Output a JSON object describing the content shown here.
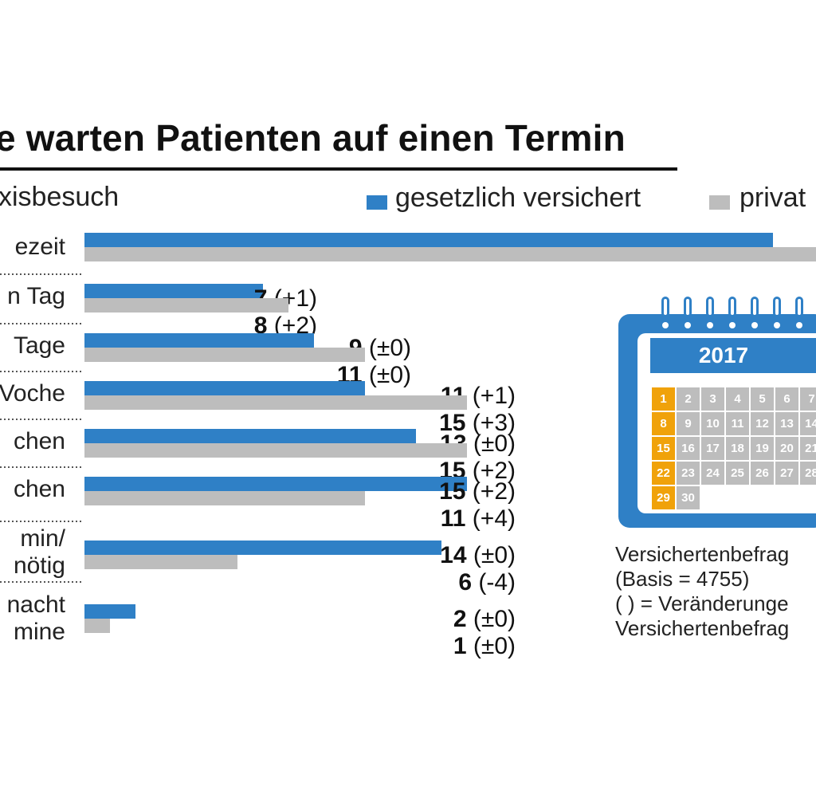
{
  "title": "e warten Patienten auf einen Termin",
  "subtitle": "xisbesuch",
  "legend": [
    {
      "label": "gesetzlich versichert",
      "color": "#2f80c6"
    },
    {
      "label": "privat",
      "color": "#bdbdbd"
    }
  ],
  "chart_data": {
    "type": "bar",
    "orientation": "horizontal",
    "categories": [
      "ezeit",
      "n Tag",
      "Tage",
      "Voche",
      "chen",
      "chen",
      "min/ nötig",
      "nacht mine"
    ],
    "series": [
      {
        "name": "gesetzlich versichert",
        "color": "#2f80c6",
        "values": [
          null,
          7,
          9,
          11,
          13,
          15,
          14,
          2
        ],
        "changes": [
          null,
          "+1",
          "±0",
          "+1",
          "±0",
          "+2",
          "±0",
          "±0"
        ]
      },
      {
        "name": "privat",
        "color": "#bdbdbd",
        "values": [
          null,
          8,
          11,
          15,
          15,
          11,
          6,
          1
        ],
        "changes": [
          null,
          "+2",
          "±0",
          "+3",
          "+2",
          "+4",
          "-4",
          "±0"
        ]
      }
    ],
    "bar_lengths_first_row": [
      27,
      29
    ],
    "grid": false,
    "legend_position": "top-right"
  },
  "calendar": {
    "year": "2017",
    "days": [
      "1",
      "2",
      "3",
      "4",
      "5",
      "6",
      "7",
      "8",
      "9",
      "10",
      "11",
      "12",
      "13",
      "14",
      "15",
      "16",
      "17",
      "18",
      "19",
      "20",
      "21",
      "22",
      "23",
      "24",
      "25",
      "26",
      "27",
      "28",
      "29",
      "30"
    ],
    "highlight_color": "#f0a20a",
    "cell_color": "#bdbdbd",
    "frame_color": "#2f80c6"
  },
  "note": {
    "lines": [
      "Versichertenbefrag",
      "(Basis = 4755)",
      "( ) = Veränderunge",
      "Versichertenbefrag"
    ]
  }
}
